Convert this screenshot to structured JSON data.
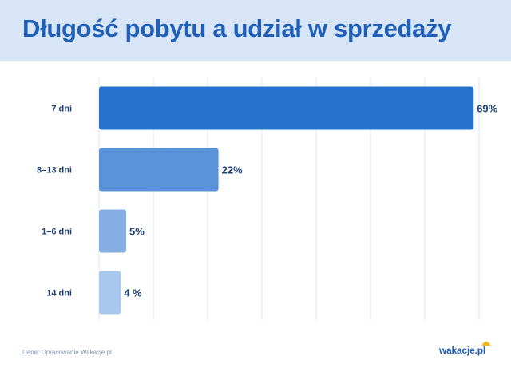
{
  "title": "Długość pobytu a udział w sprzedaży",
  "footer": {
    "source": "Dane: Opracowanie Wakacje.pl",
    "brand": "wakacje.pl"
  },
  "colors": {
    "header_bg": "#d7e5f6",
    "title": "#1f5fb8",
    "bars": [
      "#2671cb",
      "#5a93d9",
      "#85afe4",
      "#a9c8ee"
    ],
    "grid": "#dfe6f0"
  },
  "chart_data": {
    "type": "bar",
    "orientation": "horizontal",
    "title": "Długość pobytu a udział w sprzedaży",
    "categories": [
      "7 dni",
      "8–13 dni",
      "1–6 dni",
      "14 dni"
    ],
    "values": [
      69,
      22,
      5,
      4
    ],
    "value_labels": [
      "69%",
      "22%",
      "5%",
      "4 %"
    ],
    "unit": "%",
    "xlim": [
      0,
      70
    ],
    "grid": true,
    "xlabel": "",
    "ylabel": ""
  }
}
